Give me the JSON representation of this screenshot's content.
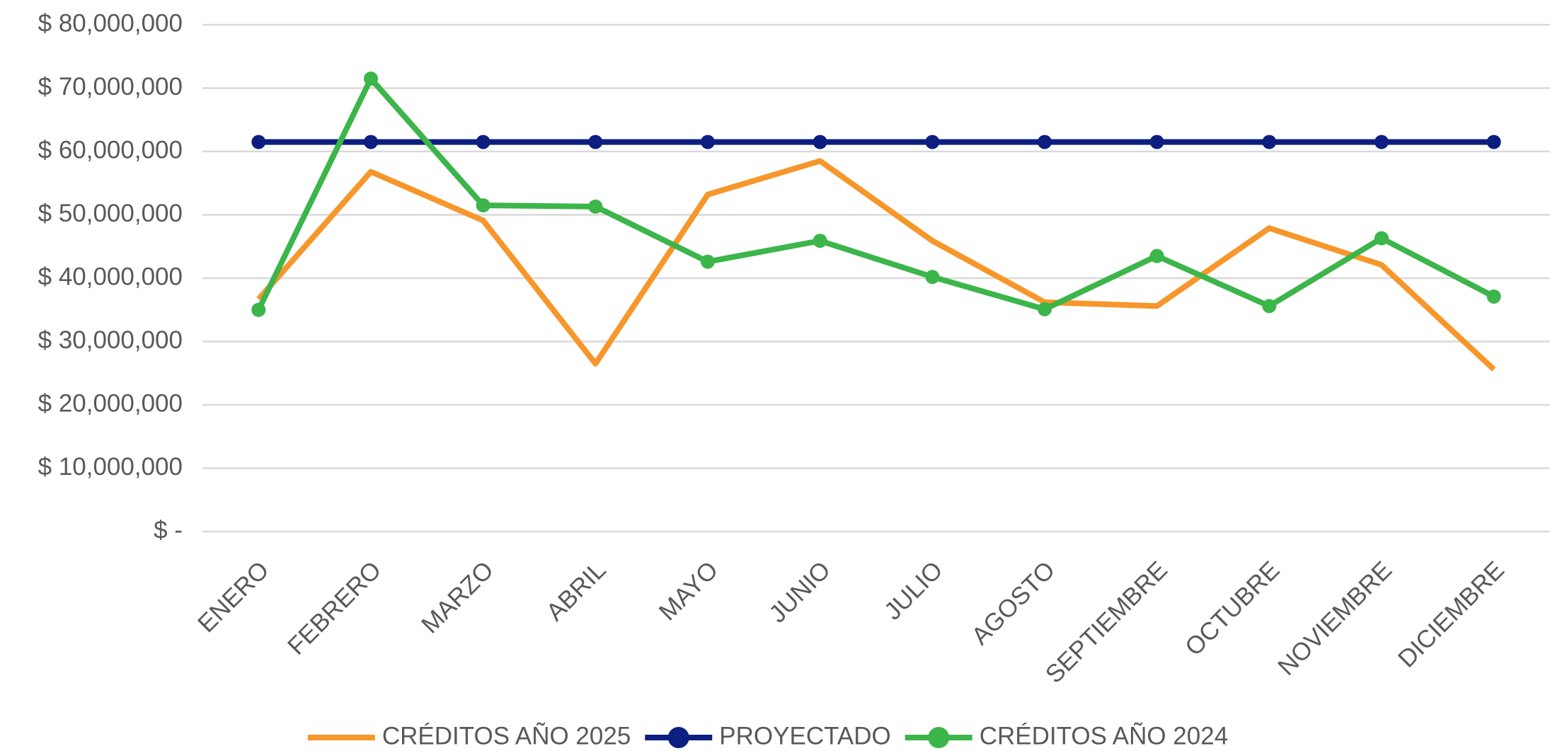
{
  "chart_data": {
    "type": "line",
    "categories": [
      "ENERO",
      "FEBRERO",
      "MARZO",
      "ABRIL",
      "MAYO",
      "JUNIO",
      "JULIO",
      "AGOSTO",
      "SEPTIEMBRE",
      "OCTUBRE",
      "NOVIEMBRE",
      "DICIEMBRE"
    ],
    "series": [
      {
        "name": "CRÉDITOS AÑO 2025",
        "color": "#f7962a",
        "markers": false,
        "values": [
          36700000,
          56800000,
          49100000,
          26500000,
          53200000,
          58500000,
          45900000,
          36200000,
          35600000,
          47900000,
          42100000,
          25600000
        ]
      },
      {
        "name": "PROYECTADO",
        "color": "#0c1f80",
        "markers": true,
        "values": [
          61500000,
          61500000,
          61500000,
          61500000,
          61500000,
          61500000,
          61500000,
          61500000,
          61500000,
          61500000,
          61500000,
          61500000
        ]
      },
      {
        "name": "CRÉDITOS AÑO 2024",
        "color": "#3cb54a",
        "markers": true,
        "values": [
          35000000,
          71500000,
          51500000,
          51300000,
          42600000,
          45900000,
          40200000,
          35100000,
          43500000,
          35600000,
          46300000,
          37100000
        ]
      }
    ],
    "ylim": [
      0,
      80000000
    ],
    "yticks": [
      {
        "value": 0,
        "label": "$ -"
      },
      {
        "value": 10000000,
        "label": "$ 10,000,000"
      },
      {
        "value": 20000000,
        "label": "$ 20,000,000"
      },
      {
        "value": 30000000,
        "label": "$ 30,000,000"
      },
      {
        "value": 40000000,
        "label": "$ 40,000,000"
      },
      {
        "value": 50000000,
        "label": "$ 50,000,000"
      },
      {
        "value": 60000000,
        "label": "$ 60,000,000"
      },
      {
        "value": 70000000,
        "label": "$ 70,000,000"
      },
      {
        "value": 80000000,
        "label": "$ 80,000,000"
      }
    ],
    "grid": true,
    "legend": "bottom"
  }
}
